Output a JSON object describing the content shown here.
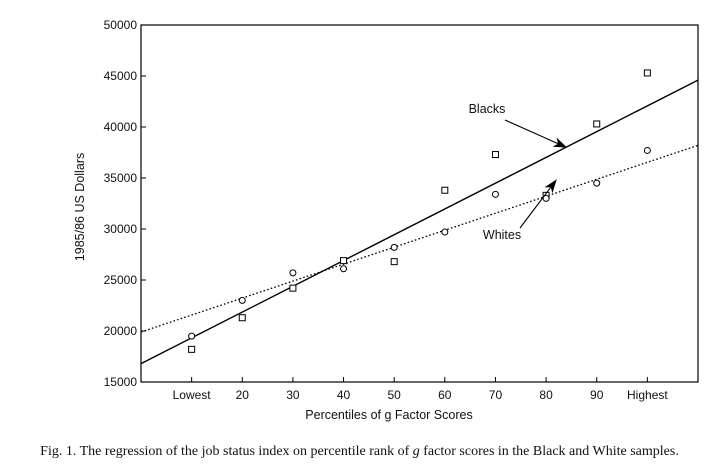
{
  "chart_data": {
    "type": "scatter",
    "title": "",
    "xlabel": "Percentiles of g Factor Scores",
    "ylabel": "1985/86 US Dollars",
    "x_ticks": [
      "Lowest",
      "20",
      "30",
      "40",
      "50",
      "60",
      "70",
      "80",
      "90",
      "Highest"
    ],
    "x": [
      10,
      20,
      30,
      40,
      50,
      60,
      70,
      80,
      90,
      100
    ],
    "xlim": [
      0,
      110
    ],
    "ylim": [
      15000,
      50000
    ],
    "y_ticks": [
      "15000",
      "20000",
      "25000",
      "30000",
      "35000",
      "40000",
      "45000",
      "50000"
    ],
    "grid": false,
    "series": [
      {
        "name": "Blacks",
        "marker": "square",
        "values": [
          18200,
          21300,
          24200,
          26900,
          26800,
          33800,
          37300,
          33300,
          40300,
          45300
        ],
        "fit_line": {
          "style": "solid",
          "endpoints": [
            [
              0,
              16800
            ],
            [
              110,
              44600
            ]
          ]
        }
      },
      {
        "name": "Whites",
        "marker": "circle",
        "values": [
          19500,
          23000,
          25700,
          26100,
          28200,
          29700,
          33400,
          33000,
          34500,
          37700
        ],
        "fit_line": {
          "style": "dotted",
          "endpoints": [
            [
              0,
              19900
            ],
            [
              110,
              38200
            ]
          ]
        }
      }
    ],
    "annotations": [
      {
        "text": "Blacks",
        "points_to": [
          84,
          38000
        ]
      },
      {
        "text": "Whites",
        "points_to": [
          82,
          34800
        ]
      }
    ]
  },
  "caption": {
    "before": "Fig. 1. The regression of the job status index on percentile rank of ",
    "italic": "g",
    "after": " factor scores in the Black and White samples."
  }
}
